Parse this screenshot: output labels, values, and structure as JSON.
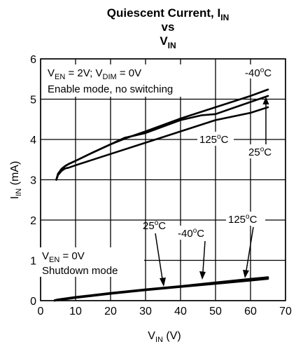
{
  "chart_data": {
    "type": "line",
    "title": {
      "line1": "Quiescent Current, I",
      "line1_sub": "IN",
      "line2": "vs",
      "line3": "V",
      "line3_sub": "IN"
    },
    "xlabel": {
      "text": "V",
      "sub": "IN",
      "unit": " (V)"
    },
    "ylabel": {
      "text": "I",
      "sub": "IN",
      "unit": " (mA)"
    },
    "xlim": [
      0,
      70
    ],
    "ylim": [
      0,
      6
    ],
    "x_ticks": [
      0,
      10,
      20,
      30,
      40,
      50,
      60,
      70
    ],
    "y_ticks": [
      0,
      1,
      2,
      3,
      4,
      5,
      6
    ],
    "grid": true,
    "annotations": {
      "enable_line1": {
        "parts": [
          "V",
          "EN",
          " = 2V; V",
          "DIM",
          " = 0V"
        ]
      },
      "enable_line2": "Enable mode, no switching",
      "shutdown_line1": {
        "parts": [
          "V",
          "EN",
          " = 0V"
        ]
      },
      "shutdown_line2": "Shutdown mode",
      "temp_m40_top": {
        "value": "-40",
        "deg": "o",
        "unit": "C"
      },
      "temp_125_top": {
        "value": "125",
        "deg": "o",
        "unit": "C"
      },
      "temp_25_top": {
        "value": "25",
        "deg": "o",
        "unit": "C"
      },
      "temp_25_bottom": {
        "value": "25",
        "deg": "o",
        "unit": "C"
      },
      "temp_m40_bottom": {
        "value": "-40",
        "deg": "o",
        "unit": "C"
      },
      "temp_125_bottom": {
        "value": "125",
        "deg": "o",
        "unit": "C"
      }
    },
    "series": [
      {
        "label_key": "temp_m40_top",
        "stroke": "#000000",
        "x": [
          4.5,
          5,
          6,
          7,
          8,
          10,
          15,
          20,
          25,
          30,
          40,
          50,
          60,
          65
        ],
        "y": [
          3.0,
          3.15,
          3.27,
          3.34,
          3.39,
          3.47,
          3.68,
          3.88,
          4.05,
          4.2,
          4.52,
          4.8,
          5.08,
          5.24
        ]
      },
      {
        "label_key": "temp_25_top",
        "stroke": "#000000",
        "x": [
          4.5,
          5,
          6,
          7,
          8,
          10,
          15,
          20,
          24,
          30,
          40,
          46,
          50,
          55,
          60,
          65
        ],
        "y": [
          3.0,
          3.15,
          3.27,
          3.34,
          3.39,
          3.47,
          3.68,
          3.88,
          4.04,
          4.16,
          4.48,
          4.6,
          4.63,
          4.78,
          4.93,
          5.08
        ]
      },
      {
        "label_key": "temp_125_top",
        "stroke": "#000000",
        "x": [
          4.5,
          5,
          6,
          7,
          8,
          10,
          20,
          30,
          40,
          50,
          60,
          65
        ],
        "y": [
          3.0,
          3.12,
          3.22,
          3.28,
          3.3,
          3.36,
          3.64,
          3.92,
          4.2,
          4.48,
          4.66,
          4.8
        ]
      },
      {
        "label_key": "temp_m40_bottom",
        "stroke": "#000000",
        "x": [
          4,
          5,
          10,
          20,
          30,
          40,
          50,
          60,
          65
        ],
        "y": [
          0.0,
          0.01,
          0.07,
          0.17,
          0.26,
          0.34,
          0.42,
          0.5,
          0.54
        ]
      },
      {
        "label_key": "temp_25_bottom",
        "stroke": "#000000",
        "x": [
          4,
          5,
          10,
          20,
          30,
          40,
          50,
          60,
          65
        ],
        "y": [
          0.0,
          0.02,
          0.08,
          0.18,
          0.27,
          0.35,
          0.43,
          0.52,
          0.56
        ]
      },
      {
        "label_key": "temp_125_bottom",
        "stroke": "#000000",
        "x": [
          4,
          5,
          10,
          20,
          30,
          40,
          50,
          60,
          65
        ],
        "y": [
          0.01,
          0.03,
          0.09,
          0.19,
          0.28,
          0.36,
          0.45,
          0.54,
          0.58
        ]
      }
    ]
  }
}
